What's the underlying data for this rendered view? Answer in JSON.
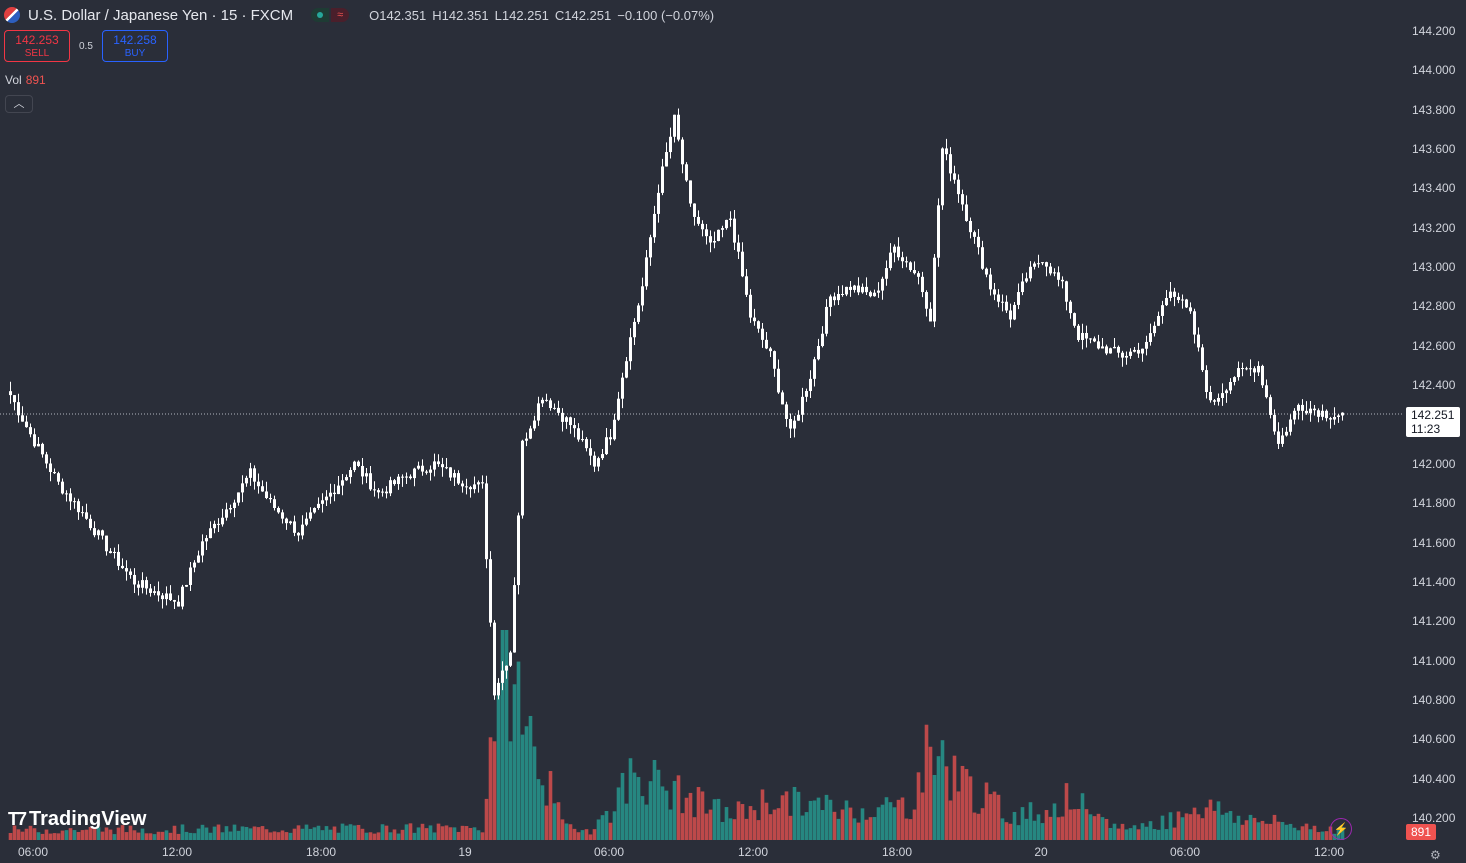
{
  "header": {
    "title": "U.S. Dollar / Japanese Yen · 15 · FXCM",
    "ohlc": {
      "o": "O142.351",
      "h": "H142.351",
      "l": "L142.251",
      "c": "C142.251",
      "change": "−0.100 (−0.07%)"
    }
  },
  "trade": {
    "sell_price": "142.253",
    "sell_label": "SELL",
    "spread": "0.5",
    "buy_price": "142.258",
    "buy_label": "BUY"
  },
  "volume": {
    "label": "Vol",
    "value": "891",
    "tag": "891"
  },
  "price_axis": {
    "ticks": [
      "144.200",
      "144.000",
      "143.800",
      "143.600",
      "143.400",
      "143.200",
      "143.000",
      "142.800",
      "142.600",
      "142.400",
      "142.200",
      "142.000",
      "141.800",
      "141.600",
      "141.400",
      "141.200",
      "141.000",
      "140.800",
      "140.600",
      "140.400",
      "140.200"
    ],
    "last_price": "142.251",
    "countdown": "11:23"
  },
  "time_axis": {
    "ticks": [
      "06:00",
      "12:00",
      "18:00",
      "19",
      "06:00",
      "12:00",
      "18:00",
      "20",
      "06:00",
      "12:00"
    ]
  },
  "logo": {
    "text": "TradingView"
  },
  "colors": {
    "background": "#2a2e39",
    "candle": "#ffffff",
    "volume_up": "#26a69a",
    "volume_down": "#ef5350"
  },
  "chart_data": {
    "type": "candlestick",
    "series_style": "hollow/white candles with volume histogram",
    "y_range": [
      140.1,
      144.3
    ],
    "anchors": [
      [
        0,
        142.35
      ],
      [
        5,
        142.15
      ],
      [
        12,
        141.9
      ],
      [
        18,
        141.75
      ],
      [
        25,
        141.55
      ],
      [
        31,
        141.4
      ],
      [
        36,
        141.35
      ],
      [
        42,
        141.3
      ],
      [
        48,
        141.6
      ],
      [
        55,
        141.8
      ],
      [
        60,
        141.95
      ],
      [
        65,
        141.8
      ],
      [
        72,
        141.65
      ],
      [
        80,
        141.85
      ],
      [
        86,
        142.0
      ],
      [
        92,
        141.85
      ],
      [
        100,
        141.95
      ],
      [
        106,
        142.0
      ],
      [
        112,
        141.92
      ],
      [
        118,
        141.88
      ],
      [
        121,
        140.85
      ],
      [
        125,
        141.05
      ],
      [
        128,
        142.1
      ],
      [
        133,
        142.35
      ],
      [
        140,
        142.2
      ],
      [
        146,
        142.0
      ],
      [
        150,
        142.15
      ],
      [
        154,
        142.55
      ],
      [
        158,
        142.9
      ],
      [
        162,
        143.4
      ],
      [
        166,
        143.75
      ],
      [
        170,
        143.3
      ],
      [
        175,
        143.1
      ],
      [
        180,
        143.25
      ],
      [
        185,
        142.75
      ],
      [
        190,
        142.55
      ],
      [
        195,
        142.15
      ],
      [
        200,
        142.45
      ],
      [
        205,
        142.85
      ],
      [
        210,
        142.9
      ],
      [
        216,
        142.85
      ],
      [
        221,
        143.1
      ],
      [
        227,
        142.95
      ],
      [
        230,
        142.75
      ],
      [
        233,
        143.6
      ],
      [
        236,
        143.45
      ],
      [
        240,
        143.2
      ],
      [
        245,
        142.9
      ],
      [
        250,
        142.75
      ],
      [
        254,
        142.95
      ],
      [
        258,
        143.05
      ],
      [
        263,
        142.9
      ],
      [
        267,
        142.65
      ],
      [
        272,
        142.6
      ],
      [
        278,
        142.55
      ],
      [
        284,
        142.6
      ],
      [
        290,
        142.9
      ],
      [
        295,
        142.75
      ],
      [
        300,
        142.3
      ],
      [
        306,
        142.45
      ],
      [
        312,
        142.5
      ],
      [
        317,
        142.1
      ],
      [
        322,
        142.3
      ],
      [
        330,
        142.25
      ],
      [
        333,
        142.25
      ]
    ],
    "volume_profile": [
      [
        0,
        10
      ],
      [
        118,
        12
      ],
      [
        119,
        45
      ],
      [
        121,
        140
      ],
      [
        125,
        175
      ],
      [
        130,
        100
      ],
      [
        134,
        60
      ],
      [
        138,
        15
      ],
      [
        145,
        10
      ],
      [
        150,
        30
      ],
      [
        156,
        70
      ],
      [
        162,
        55
      ],
      [
        170,
        40
      ],
      [
        180,
        25
      ],
      [
        190,
        40
      ],
      [
        200,
        35
      ],
      [
        210,
        30
      ],
      [
        225,
        35
      ],
      [
        230,
        95
      ],
      [
        235,
        70
      ],
      [
        242,
        45
      ],
      [
        250,
        25
      ],
      [
        260,
        30
      ],
      [
        266,
        45
      ],
      [
        270,
        20
      ],
      [
        280,
        12
      ],
      [
        290,
        20
      ],
      [
        296,
        35
      ],
      [
        302,
        30
      ],
      [
        310,
        20
      ],
      [
        333,
        10
      ]
    ]
  }
}
